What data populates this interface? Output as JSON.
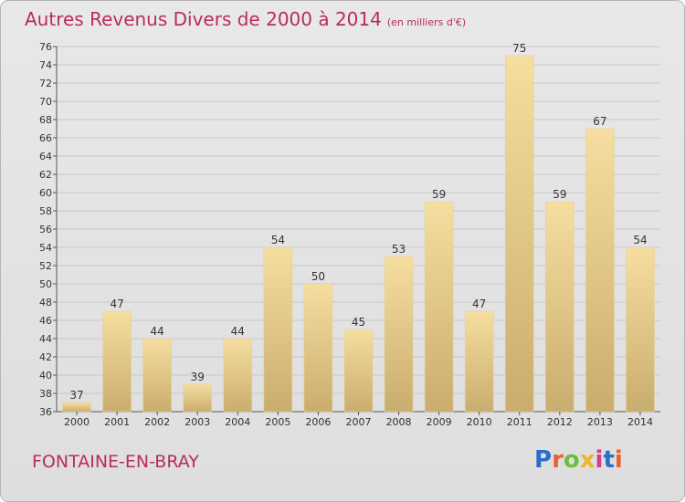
{
  "header": {
    "title": "Autres Revenus Divers de 2000 à 2014",
    "unit": "(en milliers d'€)"
  },
  "footer": {
    "commune": "FONTAINE-EN-BRAY",
    "logo_text": "Proxiti",
    "logo_colors": [
      "#2a6fc9",
      "#e8612c",
      "#6abf3f",
      "#e9b82c",
      "#d03d8c",
      "#2a6fc9",
      "#e8612c"
    ]
  },
  "colors": {
    "title": "#b82c5e",
    "bar_light": "#f6dea0",
    "bar_dark": "#c9ad6e",
    "grid": "#c8c8c8",
    "axis": "#555555"
  },
  "chart_data": {
    "type": "bar",
    "categories": [
      "2000",
      "2001",
      "2002",
      "2003",
      "2004",
      "2005",
      "2006",
      "2007",
      "2008",
      "2009",
      "2010",
      "2011",
      "2012",
      "2013",
      "2014"
    ],
    "values": [
      37,
      47,
      44,
      39,
      44,
      54,
      50,
      45,
      53,
      59,
      47,
      75,
      59,
      67,
      54
    ],
    "data_labels": [
      "37",
      "47",
      "44",
      "39",
      "44",
      "54",
      "50",
      "45",
      "53",
      "59",
      "47",
      "75",
      "59",
      "67",
      "54"
    ],
    "title": "Autres Revenus Divers de 2000 à 2014",
    "xlabel": "",
    "ylabel": "",
    "ylim": [
      36,
      76
    ],
    "ytick_step": 2,
    "grid": true,
    "legend": "none"
  }
}
